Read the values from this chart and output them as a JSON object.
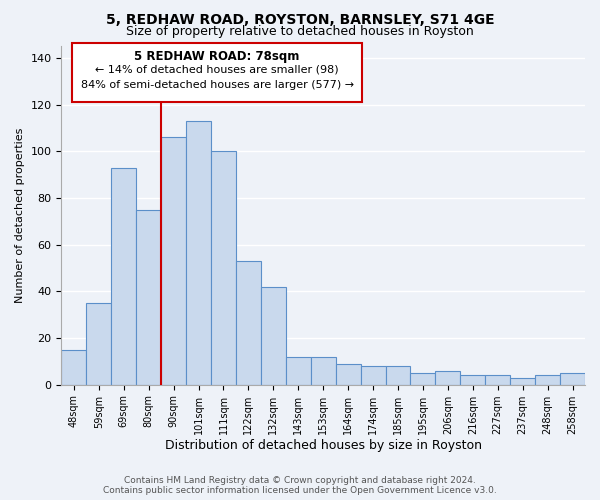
{
  "title": "5, REDHAW ROAD, ROYSTON, BARNSLEY, S71 4GE",
  "subtitle": "Size of property relative to detached houses in Royston",
  "xlabel": "Distribution of detached houses by size in Royston",
  "ylabel": "Number of detached properties",
  "bar_labels": [
    "48sqm",
    "59sqm",
    "69sqm",
    "80sqm",
    "90sqm",
    "101sqm",
    "111sqm",
    "122sqm",
    "132sqm",
    "143sqm",
    "153sqm",
    "164sqm",
    "174sqm",
    "185sqm",
    "195sqm",
    "206sqm",
    "216sqm",
    "227sqm",
    "237sqm",
    "248sqm",
    "258sqm"
  ],
  "bar_values": [
    15,
    35,
    93,
    75,
    106,
    113,
    100,
    53,
    42,
    12,
    12,
    9,
    8,
    8,
    5,
    6,
    4,
    4,
    3,
    4,
    5
  ],
  "bar_color": "#c9d9ed",
  "bar_edge_color": "#5b8fc9",
  "ylim": [
    0,
    145
  ],
  "yticks": [
    0,
    20,
    40,
    60,
    80,
    100,
    120,
    140
  ],
  "vline_x_index": 3,
  "vline_color": "#cc0000",
  "annotation_title": "5 REDHAW ROAD: 78sqm",
  "annotation_line1": "← 14% of detached houses are smaller (98)",
  "annotation_line2": "84% of semi-detached houses are larger (577) →",
  "annotation_box_color": "#ffffff",
  "annotation_box_edge": "#cc0000",
  "footer_line1": "Contains HM Land Registry data © Crown copyright and database right 2024.",
  "footer_line2": "Contains public sector information licensed under the Open Government Licence v3.0.",
  "bg_color": "#eef2f8",
  "grid_color": "#ffffff",
  "title_fontsize": 10,
  "subtitle_fontsize": 9,
  "ylabel_fontsize": 8,
  "xlabel_fontsize": 9
}
